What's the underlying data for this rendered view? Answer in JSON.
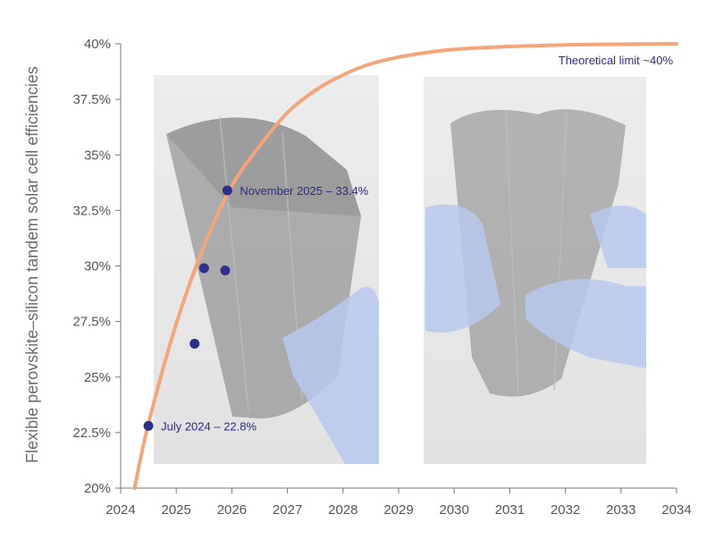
{
  "chart_data": {
    "type": "line",
    "title": "",
    "xlabel": "",
    "ylabel": "Flexible perovskite–silicon tandem solar cell efficiencies",
    "xlim": [
      2024,
      2034
    ],
    "ylim": [
      20,
      40
    ],
    "x_ticks": [
      2024,
      2025,
      2026,
      2027,
      2028,
      2029,
      2030,
      2031,
      2032,
      2033,
      2034
    ],
    "x_tick_labels": [
      "2024",
      "2025",
      "2026",
      "2027",
      "2028",
      "2029",
      "2030",
      "2031",
      "2032",
      "2033",
      "2034"
    ],
    "y_ticks": [
      20,
      22.5,
      25,
      27.5,
      30,
      32.5,
      35,
      37.5,
      40
    ],
    "y_tick_labels": [
      "20%",
      "22.5%",
      "25%",
      "27.5%",
      "30%",
      "32.5%",
      "35%",
      "37.5%",
      "40%"
    ],
    "grid": false,
    "series": [
      {
        "kind": "line",
        "color": "#f4a57a",
        "x": [
          2024.25,
          2024.5,
          2025.0,
          2025.5,
          2026.0,
          2026.5,
          2027.0,
          2027.5,
          2028.0,
          2028.5,
          2029.0,
          2029.5,
          2030.0,
          2031.0,
          2032.0,
          2033.0,
          2034.0
        ],
        "y": [
          20.0,
          22.9,
          27.4,
          30.9,
          33.6,
          35.4,
          36.9,
          37.9,
          38.6,
          39.1,
          39.4,
          39.6,
          39.75,
          39.88,
          39.95,
          39.98,
          40.0
        ]
      },
      {
        "kind": "scatter",
        "color": "#2e2e8c",
        "x": [
          2024.5,
          2025.33,
          2025.5,
          2025.88,
          2025.92
        ],
        "y": [
          22.8,
          26.5,
          29.9,
          29.8,
          33.4
        ]
      }
    ],
    "annotations": [
      {
        "text": "July 2024 – 22.8%",
        "x": 2024.5,
        "y": 22.8
      },
      {
        "text": "November 2025 – 33.4%",
        "x": 2025.92,
        "y": 33.4
      },
      {
        "text": "Theoretical limit ~40%",
        "x": 2034,
        "y": 40
      }
    ],
    "colors": {
      "curve": "#f4a57a",
      "points": "#2e2e8c",
      "annotation": "#2b2b8a",
      "axis": "#777777"
    }
  }
}
